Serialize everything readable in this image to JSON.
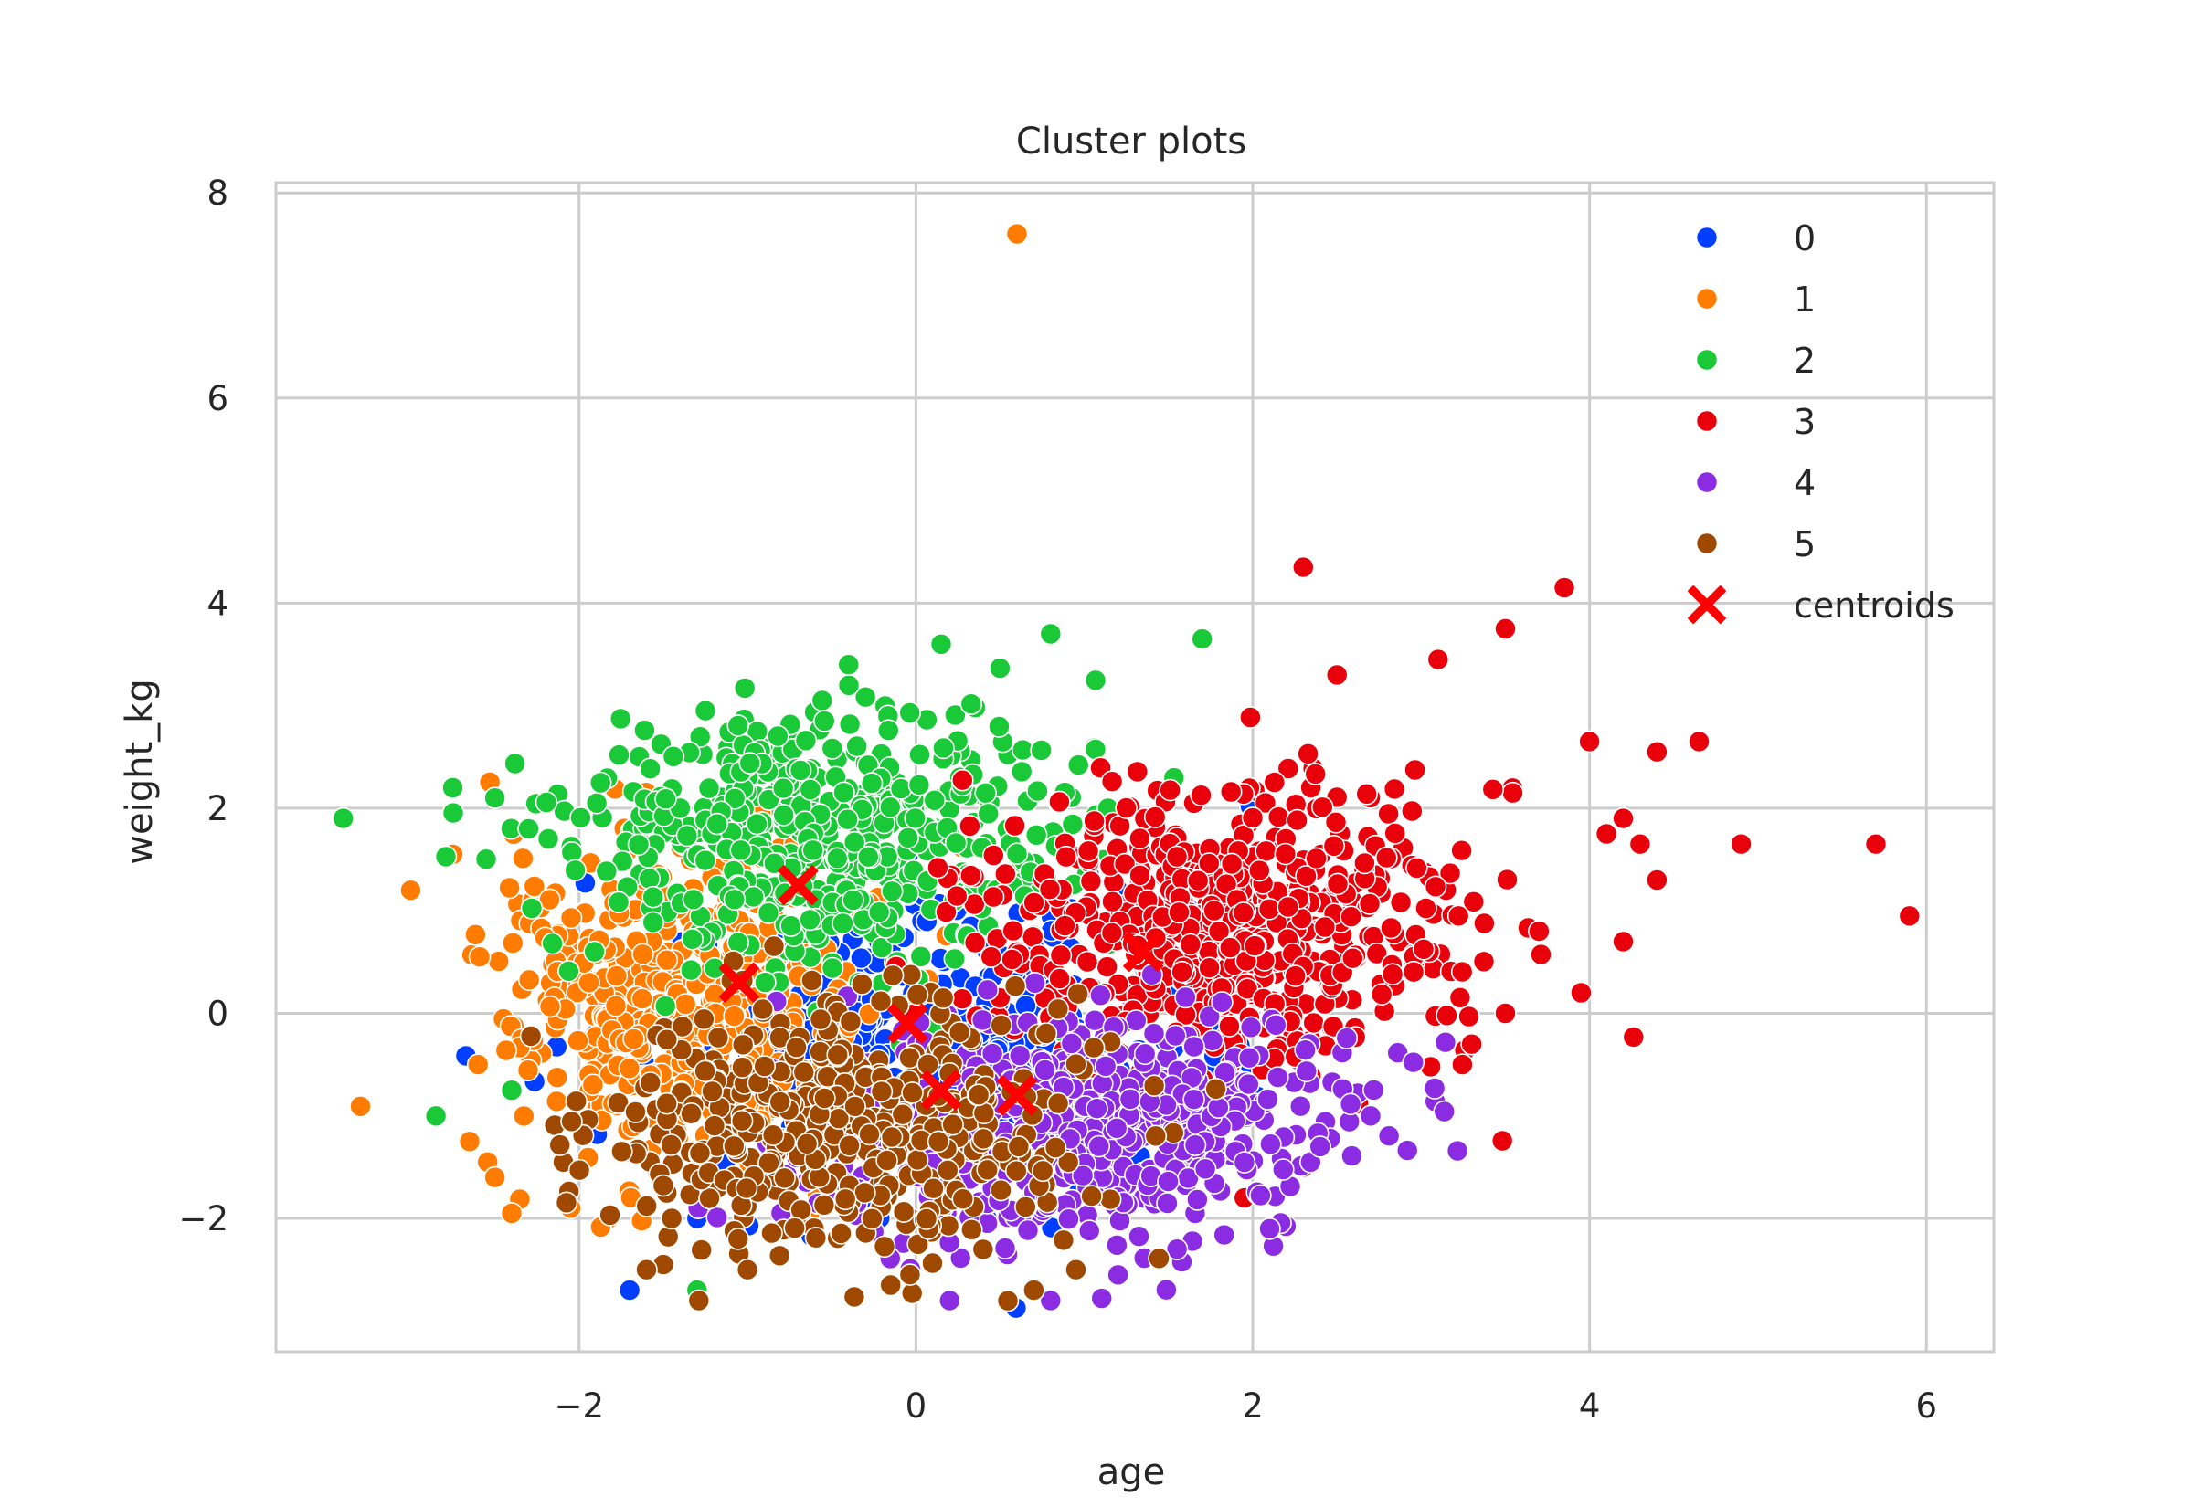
{
  "chart_data": {
    "type": "scatter",
    "title": "Cluster plots",
    "xlabel": "age",
    "ylabel": "weight_kg",
    "xlim": [
      -3.8,
      6.4
    ],
    "ylim": [
      -3.3,
      8.1
    ],
    "xticks": [
      -2,
      0,
      2,
      4,
      6
    ],
    "yticks": [
      -2,
      0,
      2,
      4,
      6,
      8
    ],
    "xtick_labels": [
      "−2",
      "0",
      "2",
      "4",
      "6"
    ],
    "ytick_labels": [
      "−2",
      "0",
      "2",
      "4",
      "6",
      "8"
    ],
    "grid": true,
    "legend_position": "top-right",
    "series": [
      {
        "name": "0",
        "color": "#023eff",
        "center": [
          0.1,
          -0.35
        ],
        "spread": [
          0.8,
          0.7
        ],
        "count": 380,
        "points": [
          [
            -1.7,
            -2.7
          ],
          [
            -1.3,
            -2.0
          ],
          [
            1.2,
            1.2
          ],
          [
            -1.9,
            -0.2
          ],
          [
            0.6,
            0.5
          ]
        ]
      },
      {
        "name": "1",
        "color": "#ff7c00",
        "center": [
          -1.45,
          0.1
        ],
        "spread": [
          0.55,
          0.8
        ],
        "count": 480,
        "points": [
          [
            0.6,
            7.6
          ],
          [
            -3.0,
            1.2
          ],
          [
            -2.75,
            1.55
          ],
          [
            -2.4,
            -1.95
          ],
          [
            -2.6,
            -0.5
          ],
          [
            -2.5,
            -1.6
          ],
          [
            -2.65,
            -1.25
          ],
          [
            -2.05,
            -1.9
          ],
          [
            -0.9,
            2.0
          ],
          [
            -0.5,
            1.9
          ]
        ]
      },
      {
        "name": "2",
        "color": "#1ac938",
        "center": [
          -0.5,
          1.75
        ],
        "spread": [
          0.75,
          0.6
        ],
        "count": 540,
        "points": [
          [
            -3.4,
            1.9
          ],
          [
            -2.75,
            2.2
          ],
          [
            -2.5,
            2.1
          ],
          [
            -2.3,
            1.8
          ],
          [
            -2.85,
            -1.0
          ],
          [
            -1.3,
            -2.7
          ],
          [
            0.8,
            3.7
          ],
          [
            1.7,
            3.65
          ],
          [
            0.15,
            3.6
          ],
          [
            -0.4,
            3.4
          ],
          [
            -1.25,
            2.95
          ],
          [
            -2.4,
            -0.75
          ]
        ]
      },
      {
        "name": "3",
        "color": "#e8000b",
        "center": [
          1.85,
          0.85
        ],
        "spread": [
          0.7,
          0.7
        ],
        "count": 620,
        "points": [
          [
            2.3,
            4.35
          ],
          [
            3.85,
            4.15
          ],
          [
            3.5,
            3.75
          ],
          [
            3.1,
            3.45
          ],
          [
            2.5,
            3.3
          ],
          [
            4.0,
            2.65
          ],
          [
            4.65,
            2.65
          ],
          [
            4.4,
            2.55
          ],
          [
            5.7,
            1.65
          ],
          [
            4.9,
            1.65
          ],
          [
            5.9,
            0.95
          ],
          [
            4.2,
            1.9
          ],
          [
            4.3,
            1.65
          ],
          [
            4.1,
            1.75
          ],
          [
            3.95,
            0.2
          ],
          [
            3.3,
            -0.3
          ],
          [
            3.5,
            0.0
          ],
          [
            3.7,
            0.8
          ],
          [
            4.4,
            1.3
          ],
          [
            4.2,
            0.7
          ],
          [
            2.3,
            -1.5
          ],
          [
            1.95,
            -1.8
          ]
        ]
      },
      {
        "name": "4",
        "color": "#8b2be2",
        "center": [
          1.05,
          -1.1
        ],
        "spread": [
          0.75,
          0.55
        ],
        "count": 560,
        "points": [
          [
            0.2,
            -2.8
          ],
          [
            0.8,
            -2.8
          ],
          [
            1.2,
            -2.55
          ],
          [
            1.55,
            -2.3
          ],
          [
            2.1,
            -2.1
          ],
          [
            2.7,
            -1.0
          ],
          [
            2.4,
            -1.3
          ]
        ]
      },
      {
        "name": "5",
        "color": "#9f4800",
        "center": [
          -0.35,
          -1.1
        ],
        "spread": [
          0.7,
          0.6
        ],
        "count": 480,
        "points": [
          [
            -0.15,
            -2.65
          ],
          [
            0.7,
            -2.7
          ],
          [
            -1.5,
            -2.45
          ],
          [
            -1.6,
            -2.5
          ],
          [
            -1.0,
            -2.5
          ],
          [
            0.95,
            -2.5
          ],
          [
            -1.45,
            -2.0
          ]
        ]
      }
    ],
    "centroids": {
      "name": "centroids",
      "color": "#ff0000",
      "points": [
        [
          -0.7,
          1.25
        ],
        [
          -1.05,
          0.3
        ],
        [
          -0.05,
          -0.1
        ],
        [
          0.15,
          -0.75
        ],
        [
          0.6,
          -0.8
        ],
        [
          1.35,
          0.6
        ]
      ]
    }
  }
}
